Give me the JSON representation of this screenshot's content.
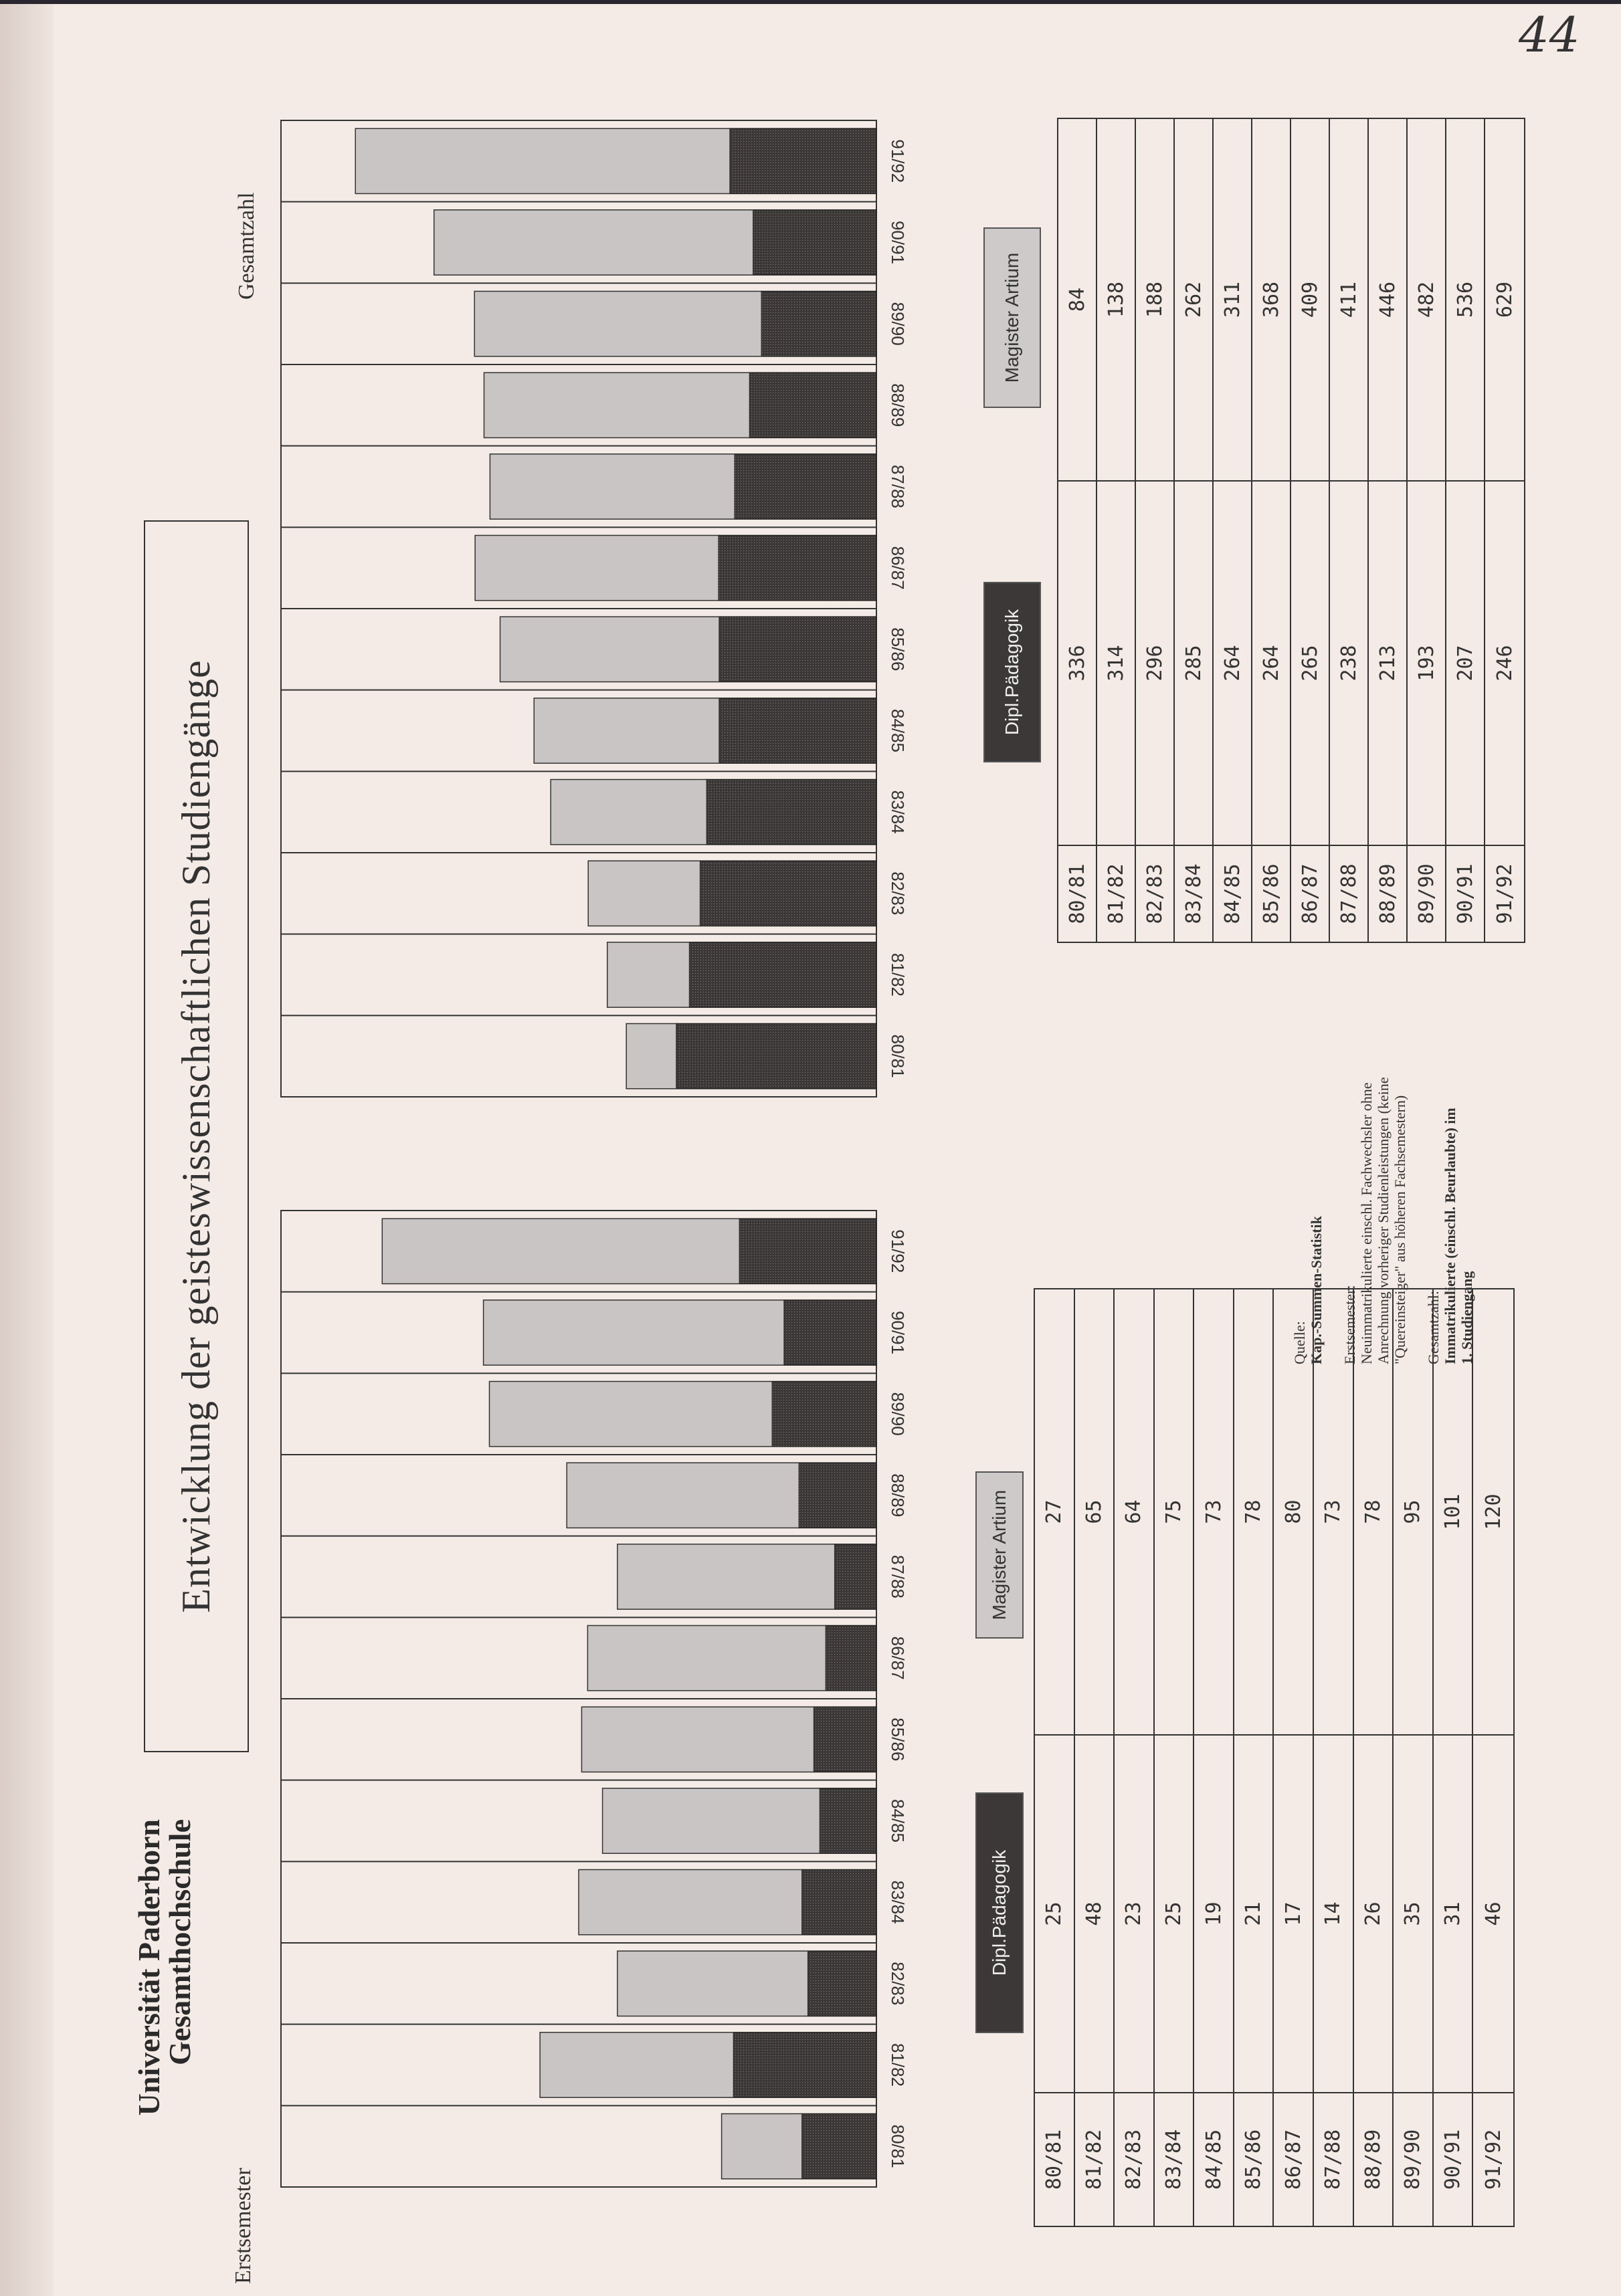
{
  "header": {
    "institution_line1": "Universität Paderborn",
    "institution_line2": "Gesamthochschule",
    "title": "Entwicklung der geisteswissenschaftlichen Studiengänge",
    "page_number": "44"
  },
  "colors": {
    "dipl": "#3d3838",
    "magister": "#c9c5c5",
    "frame": "#333333",
    "paper": "#f4ebe6"
  },
  "chart_data": [
    {
      "type": "bar",
      "stacked": true,
      "title": "Erstsemester",
      "categories": [
        "80/81",
        "81/82",
        "82/83",
        "83/84",
        "84/85",
        "85/86",
        "86/87",
        "87/88",
        "88/89",
        "89/90",
        "90/91",
        "91/92"
      ],
      "series": [
        {
          "name": "Dipl.Pädagogik",
          "values": [
            25,
            48,
            23,
            25,
            19,
            21,
            17,
            14,
            26,
            35,
            31,
            46
          ]
        },
        {
          "name": "Magister Artium",
          "values": [
            27,
            65,
            64,
            75,
            73,
            78,
            80,
            73,
            78,
            95,
            101,
            120
          ]
        }
      ],
      "ylim": [
        0,
        200
      ],
      "grid": false
    },
    {
      "type": "bar",
      "stacked": true,
      "title": "Gesamtzahl",
      "categories": [
        "80/81",
        "81/82",
        "82/83",
        "83/84",
        "84/85",
        "85/86",
        "86/87",
        "87/88",
        "88/89",
        "89/90",
        "90/91",
        "91/92"
      ],
      "series": [
        {
          "name": "Dipl.Pädagogik",
          "values": [
            336,
            314,
            296,
            285,
            264,
            264,
            265,
            238,
            213,
            193,
            207,
            246
          ]
        },
        {
          "name": "Magister Artium",
          "values": [
            84,
            138,
            188,
            262,
            311,
            368,
            409,
            411,
            446,
            482,
            536,
            629
          ]
        }
      ],
      "ylim": [
        0,
        1000
      ],
      "grid": false
    }
  ],
  "notes": {
    "lines": [
      "Quelle:",
      "Kap.-Summen-Statistik",
      "",
      "Erstsemester:",
      "Neuimmatrikulierte einschl. Fachwechsler ohne",
      "Anrechnung vorheriger Studienleistungen (keine",
      "\"Quereinsteiger\" aus höheren Fachsemestern)",
      "",
      "Gesamtzahl:",
      "Immatrikulierte (einschl. Beurlaubte) im",
      "1. Studiengang"
    ]
  }
}
